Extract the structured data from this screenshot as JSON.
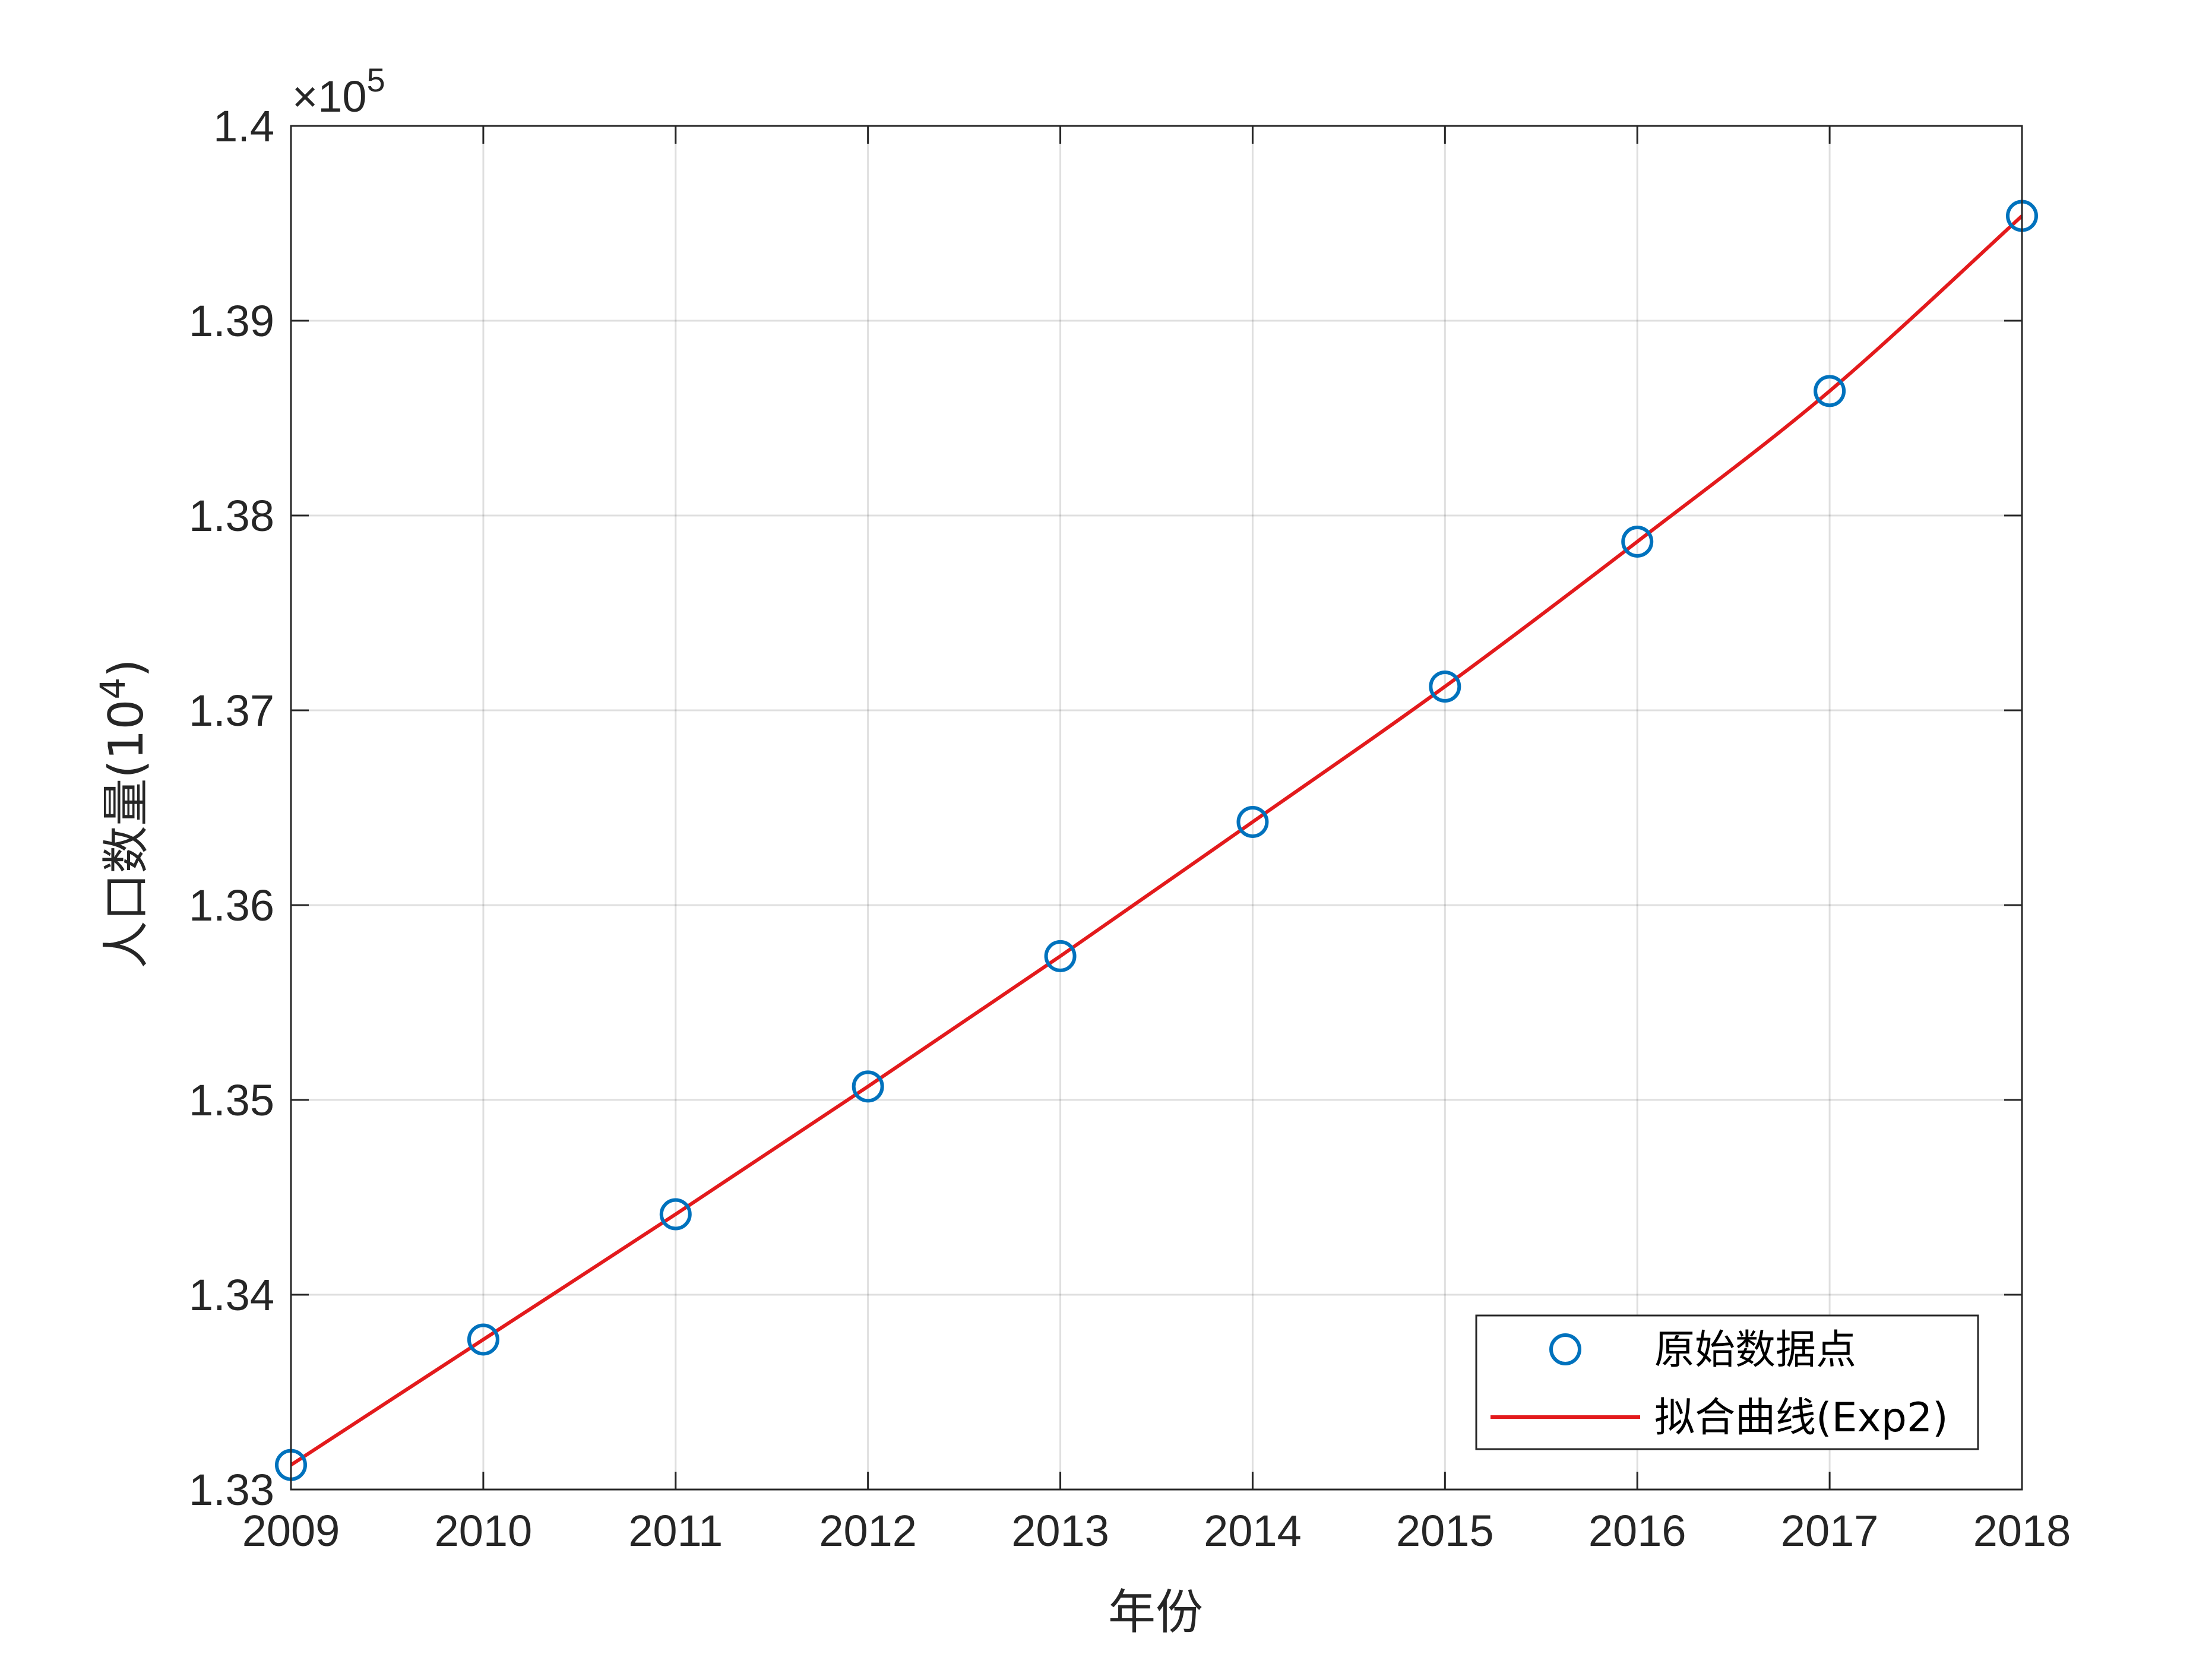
{
  "chart_data": {
    "type": "line",
    "xlabel": "年份",
    "ylabel_main": "人口数量(10",
    "ylabel_sup": "4",
    "ylabel_close": ")",
    "x_ticks": [
      "2009",
      "2010",
      "2011",
      "2012",
      "2013",
      "2014",
      "2015",
      "2016",
      "2017",
      "2018"
    ],
    "y_ticks": [
      "1.33",
      "1.34",
      "1.35",
      "1.36",
      "1.37",
      "1.38",
      "1.39",
      "1.4"
    ],
    "y_exponent_prefix": "×10",
    "y_exponent_value": "5",
    "xlim": [
      2009,
      2018
    ],
    "ylim": [
      133000,
      140000
    ],
    "grid": true,
    "legend_position": "bottom-right",
    "series": [
      {
        "name": "原始数据点",
        "style": "marker-circle",
        "color": "#0072BD",
        "x": [
          2009,
          2010,
          2011,
          2012,
          2013,
          2014,
          2015,
          2016,
          2017,
          2018
        ],
        "y": [
          133126,
          133770,
          134413,
          135069,
          135738,
          136427,
          137122,
          137866,
          138639,
          139538
        ]
      },
      {
        "name": "拟合曲线(Exp2)",
        "style": "line",
        "color": "#E31A1C",
        "x": [
          2009,
          2010,
          2011,
          2012,
          2013,
          2014,
          2015,
          2016,
          2017,
          2018
        ],
        "y": [
          133126,
          133770,
          134413,
          135069,
          135738,
          136427,
          137122,
          137866,
          138639,
          139538
        ]
      }
    ]
  }
}
